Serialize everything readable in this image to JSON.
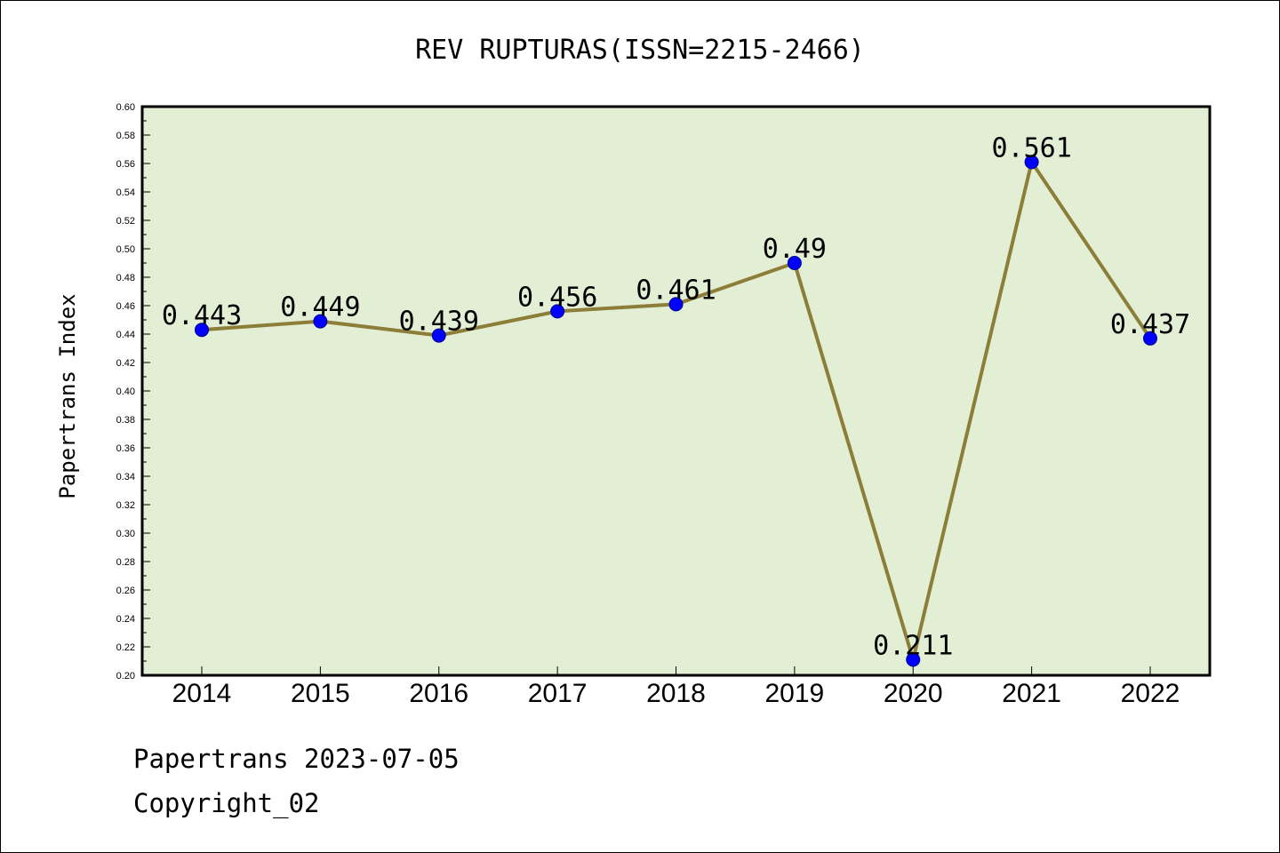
{
  "chart_data": {
    "type": "line",
    "title": "REV RUPTURAS(ISSN=2215-2466)",
    "ylabel": "Papertrans Index",
    "xlabel": "",
    "categories": [
      "2014",
      "2015",
      "2016",
      "2017",
      "2018",
      "2019",
      "2020",
      "2021",
      "2022"
    ],
    "series": [
      {
        "values": [
          0.443,
          0.449,
          0.439,
          0.456,
          0.461,
          0.49,
          0.211,
          0.561,
          0.437
        ],
        "labels": [
          "0.443",
          "0.449",
          "0.439",
          "0.456",
          "0.461",
          "0.49",
          "0.211",
          "0.561",
          "0.437"
        ]
      }
    ],
    "ylim": [
      0.2,
      0.6
    ],
    "yticks": [
      "0.20",
      "0.22",
      "0.24",
      "0.26",
      "0.28",
      "0.30",
      "0.32",
      "0.34",
      "0.36",
      "0.38",
      "0.40",
      "0.42",
      "0.44",
      "0.46",
      "0.48",
      "0.50",
      "0.52",
      "0.54",
      "0.56",
      "0.58",
      "0.60"
    ],
    "grid": false,
    "colors": {
      "plot_background": "#e2efd5",
      "line": "#8c7e38",
      "marker": "#0000ff"
    }
  },
  "footer": {
    "line1": "Papertrans 2023-07-05",
    "line2": "Copyright_02"
  }
}
